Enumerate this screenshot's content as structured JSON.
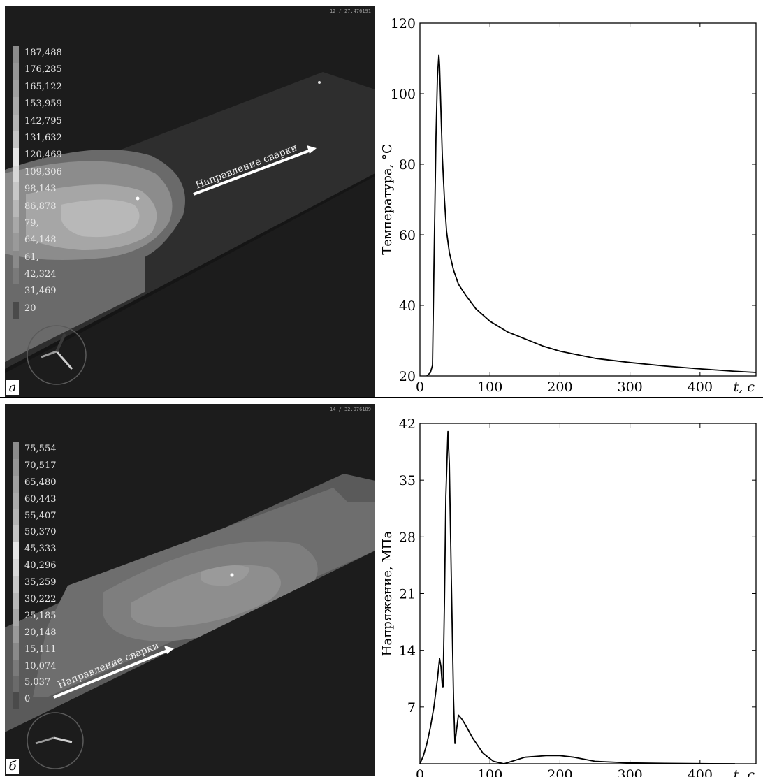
{
  "panel_a": {
    "letter": "а",
    "frame_stamp": "12 / 27.476191",
    "weld_direction_label": "Направление сварки",
    "legend": [
      "187,488",
      "176,285",
      "165,122",
      "153,959",
      "142,795",
      "131,632",
      "120,469",
      "109,306",
      "98,143",
      "86,878",
      "79,",
      "64,148",
      "61,",
      "42,324",
      "31,469",
      "20"
    ],
    "legend_colors": [
      "#8c8c8c",
      "#969696",
      "#a0a0a0",
      "#aaaaaa",
      "#b4b4b4",
      "#c4c4c4",
      "#e6e6e6",
      "#d8d8d8",
      "#c8c8c8",
      "#b8b8b8",
      "#a8a8a8",
      "#9a9a9a",
      "#8a8a8a",
      "#7a7a7a",
      "#6a6a6a",
      "#4a4a4a"
    ]
  },
  "panel_b": {
    "letter": "б",
    "frame_stamp": "14 / 32.976189",
    "weld_direction_label": "Направление сварки",
    "legend": [
      "75,554",
      "70,517",
      "65,480",
      "60,443",
      "55,407",
      "50,370",
      "45,333",
      "40,296",
      "35,259",
      "30,222",
      "25,185",
      "20,148",
      "15,111",
      "10,074",
      "5,037",
      "0"
    ],
    "legend_colors": [
      "#8c8c8c",
      "#969696",
      "#a0a0a0",
      "#aaaaaa",
      "#b4b4b4",
      "#c4c4c4",
      "#e6e6e6",
      "#d8d8d8",
      "#c8c8c8",
      "#b8b8b8",
      "#a8a8a8",
      "#9a9a9a",
      "#8a8a8a",
      "#7a7a7a",
      "#6a6a6a",
      "#4a4a4a"
    ]
  },
  "chart_data": [
    {
      "type": "line",
      "ylabel": "Температура, °С",
      "xlabel": "t,  с",
      "xlim": [
        0,
        480
      ],
      "ylim": [
        20,
        120
      ],
      "xticks": [
        0,
        100,
        200,
        300,
        400
      ],
      "yticks": [
        20,
        40,
        60,
        80,
        100,
        120
      ],
      "x": [
        10,
        15,
        18,
        20,
        23,
        25,
        27,
        28,
        30,
        32,
        35,
        38,
        42,
        48,
        55,
        65,
        80,
        100,
        125,
        150,
        175,
        200,
        250,
        300,
        350,
        400,
        450,
        480
      ],
      "y": [
        20,
        21,
        23,
        50,
        88,
        105,
        111,
        108,
        95,
        82,
        70,
        61,
        55,
        50,
        46,
        43,
        39,
        35.5,
        32.5,
        30.5,
        28.5,
        27,
        25,
        23.8,
        22.8,
        22,
        21.3,
        21
      ]
    },
    {
      "type": "line",
      "ylabel": "Напряжение,  МПа",
      "xlabel": "t,  с",
      "xlim": [
        0,
        480
      ],
      "ylim": [
        0,
        42
      ],
      "xticks": [
        0,
        100,
        200,
        300,
        400
      ],
      "yticks": [
        7,
        14,
        21,
        28,
        35,
        42
      ],
      "x": [
        0,
        5,
        10,
        15,
        20,
        25,
        28,
        30,
        32,
        33,
        35,
        37,
        40,
        42,
        45,
        48,
        50,
        52,
        55,
        60,
        65,
        75,
        90,
        105,
        120,
        150,
        180,
        200,
        220,
        250,
        300,
        350,
        400,
        450
      ],
      "y": [
        0,
        1,
        2.5,
        4.5,
        7,
        10.5,
        13,
        12,
        9.5,
        9.5,
        20,
        33,
        41,
        37,
        22,
        8,
        2.5,
        4,
        6,
        5.5,
        4.8,
        3.2,
        1.3,
        0.3,
        0,
        0.8,
        1,
        1,
        0.8,
        0.3,
        0.1,
        0.05,
        0.02,
        0
      ]
    }
  ]
}
